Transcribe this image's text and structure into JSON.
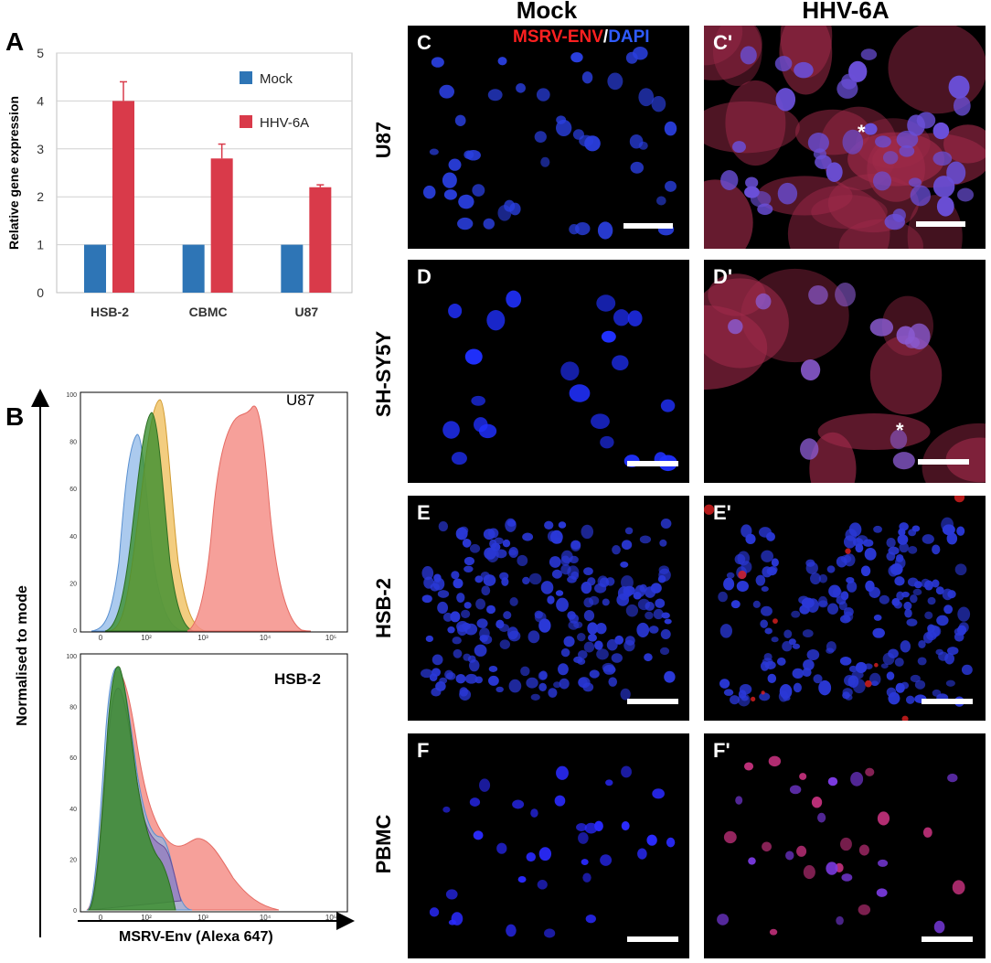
{
  "panel_a": {
    "label": "A",
    "chart_data": {
      "type": "bar",
      "categories": [
        "HSB-2",
        "CBMC",
        "U87"
      ],
      "series": [
        {
          "name": "Mock",
          "values": [
            1,
            1,
            1
          ],
          "color": "#2e75b6"
        },
        {
          "name": "HHV-6A",
          "values": [
            4.0,
            2.8,
            2.2
          ],
          "errors": [
            0.4,
            0.3,
            0.05
          ],
          "color": "#d93a4a"
        }
      ],
      "ylabel": "Relative gene expression",
      "ylim": [
        0,
        5
      ],
      "yticks": [
        "0",
        "1",
        "2",
        "3",
        "4",
        "5"
      ],
      "grid": true,
      "legend": "top-right"
    }
  },
  "panel_b": {
    "label": "B",
    "ylabel": "Normalised to mode",
    "xlabel": "MSRV-Env (Alexa 647)",
    "top": {
      "title": "U87",
      "yticks": [
        "0",
        "20",
        "40",
        "60",
        "80",
        "100"
      ],
      "xticks": [
        "0",
        "10²",
        "10³",
        "10⁴",
        "10⁵"
      ]
    },
    "bottom": {
      "title": "HSB-2",
      "yticks": [
        "0",
        "20",
        "40",
        "60",
        "80",
        "100"
      ],
      "xticks": [
        "0",
        "10²",
        "10³",
        "10⁴",
        "10⁵"
      ]
    }
  },
  "micrographs": {
    "columns": [
      "Mock",
      "HHV-6A"
    ],
    "stain": {
      "red": "MSRV-ENV",
      "sep": "/",
      "blue": "DAPI"
    },
    "rows": [
      {
        "name": "U87",
        "mock_label": "C",
        "hhv_label": "C'",
        "star": "*"
      },
      {
        "name": "SH-SY5Y",
        "mock_label": "D",
        "hhv_label": "D'",
        "star": "*"
      },
      {
        "name": "HSB-2",
        "mock_label": "E",
        "hhv_label": "E'"
      },
      {
        "name": "PBMC",
        "mock_label": "F",
        "hhv_label": "F'"
      }
    ]
  }
}
